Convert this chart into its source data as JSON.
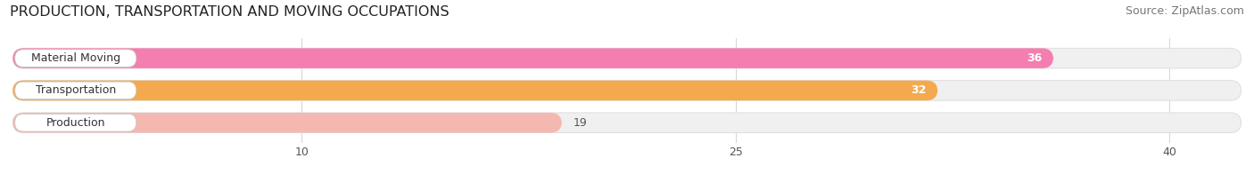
{
  "title": "PRODUCTION, TRANSPORTATION AND MOVING OCCUPATIONS",
  "source": "Source: ZipAtlas.com",
  "categories": [
    "Material Moving",
    "Transportation",
    "Production"
  ],
  "values": [
    36,
    32,
    19
  ],
  "bar_colors": [
    "#f47eb0",
    "#f5a94e",
    "#f5b8b0"
  ],
  "value_labels": [
    36,
    32,
    19
  ],
  "xlim_max": 42.5,
  "xticks": [
    10,
    25,
    40
  ],
  "background_color": "#ffffff",
  "bg_bar_color": "#f0f0f0",
  "bg_bar_edge_color": "#e0e0e0",
  "title_fontsize": 11.5,
  "source_fontsize": 9,
  "label_fontsize": 9,
  "value_fontsize": 9,
  "bar_height": 0.62,
  "fig_width": 14.06,
  "fig_height": 1.96,
  "dpi": 100
}
